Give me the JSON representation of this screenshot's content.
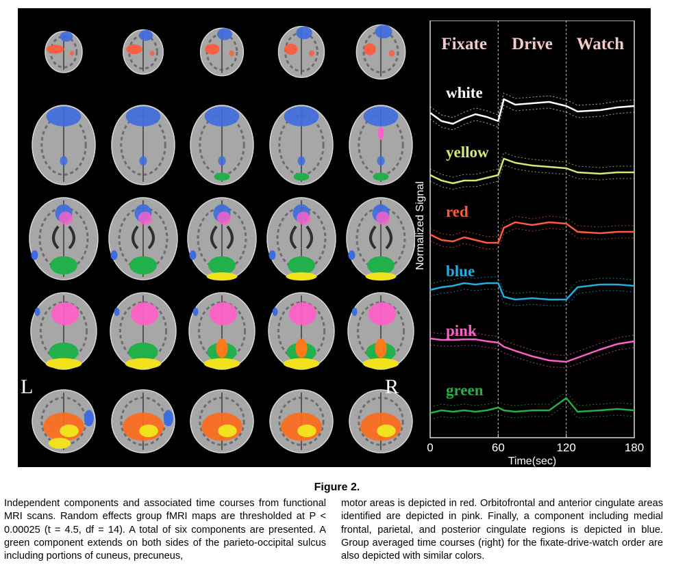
{
  "figure": {
    "side_labels": {
      "left": "L",
      "right": "R"
    },
    "component_colors": {
      "white": "#ffffff",
      "yellow": "#d6ea72",
      "red": "#ff5a3c",
      "blue": "#22aee0",
      "pink": "#ff5fc8",
      "green": "#22b04a"
    }
  },
  "chart_data": {
    "type": "line",
    "xlabel": "Time(sec)",
    "ylabel": "Normalized Signal",
    "xlim": [
      0,
      180
    ],
    "x_ticks": [
      "0",
      "60",
      "120",
      "180"
    ],
    "epochs": [
      "Fixate",
      "Drive",
      "Watch"
    ],
    "epoch_boundaries": [
      60,
      120
    ],
    "x": [
      0,
      10,
      20,
      30,
      40,
      50,
      60,
      65,
      75,
      90,
      105,
      120,
      130,
      150,
      165,
      180
    ],
    "series": [
      {
        "name": "white",
        "color": "#ffffff",
        "values": [
          0.5,
          0.2,
          0.1,
          0.3,
          0.45,
          0.35,
          0.2,
          1.0,
          0.8,
          0.85,
          0.9,
          0.75,
          0.55,
          0.6,
          0.7,
          0.75
        ]
      },
      {
        "name": "yellow",
        "color": "#d6ea72",
        "values": [
          0.4,
          0.2,
          0.1,
          0.2,
          0.2,
          0.3,
          0.4,
          1.0,
          0.85,
          0.75,
          0.7,
          0.65,
          0.5,
          0.45,
          0.5,
          0.5
        ]
      },
      {
        "name": "red",
        "color": "#ff5a3c",
        "values": [
          0.4,
          0.2,
          0.15,
          0.3,
          0.2,
          0.1,
          0.1,
          0.65,
          0.85,
          0.75,
          0.85,
          0.8,
          0.5,
          0.45,
          0.5,
          0.5
        ]
      },
      {
        "name": "blue",
        "color": "#22aee0",
        "values": [
          0.55,
          0.65,
          0.7,
          0.8,
          0.75,
          0.8,
          0.8,
          0.3,
          0.2,
          0.25,
          0.2,
          0.2,
          0.65,
          0.75,
          0.75,
          0.7
        ]
      },
      {
        "name": "pink",
        "color": "#ff5fc8",
        "values": [
          0.95,
          0.9,
          0.9,
          0.92,
          0.92,
          0.85,
          0.8,
          0.65,
          0.5,
          0.3,
          0.15,
          0.1,
          0.25,
          0.55,
          0.75,
          0.85
        ]
      },
      {
        "name": "green",
        "color": "#22b04a",
        "values": [
          0.4,
          0.5,
          0.45,
          0.5,
          0.45,
          0.5,
          0.6,
          0.5,
          0.45,
          0.5,
          0.5,
          0.95,
          0.45,
          0.5,
          0.55,
          0.5
        ]
      }
    ]
  },
  "caption": {
    "title": "Figure 2.",
    "left": "Independent components and associated time courses from functional MRI scans. Random effects group fMRI maps are thresholded at P < 0.00025 (t = 4.5, df = 14). A total of six components are presented. A green component extends on both sides of the parieto-occipital sulcus including portions of cuneus, precuneus,",
    "right": "motor areas is depicted in red. Orbitofrontal and anterior cingulate areas identified are depicted in pink. Finally, a component including medial frontal, parietal, and posterior cingulate regions is depicted in blue. Group averaged time courses (right) for the fixate-drive-watch order are also depicted with similar colors."
  }
}
